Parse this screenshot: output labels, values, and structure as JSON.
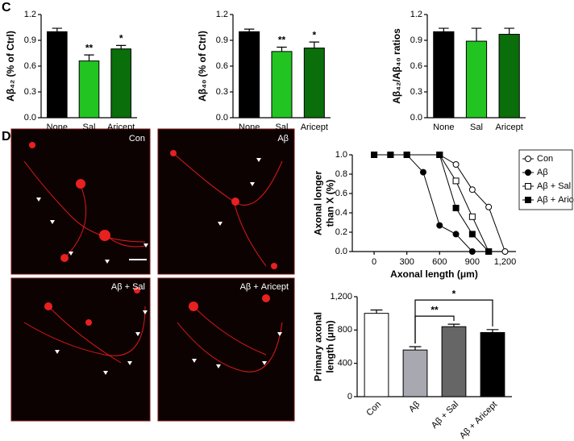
{
  "panel_labels": [
    "C",
    "D"
  ],
  "images": [
    "Con",
    "Aβ",
    "Aβ + Sal",
    "Aβ + Aricept"
  ],
  "chart_data": [
    {
      "type": "bar",
      "ylabel": [
        "Aβ₄₂ (% of Ctrl)"
      ],
      "categories": [
        "None",
        "Sal",
        "Aricept"
      ],
      "values": [
        1.0,
        0.66,
        0.8
      ],
      "errors": [
        0.04,
        0.07,
        0.04
      ],
      "colors": [
        "#000000",
        "#22c422",
        "#0a6e0a"
      ],
      "annotations": [
        null,
        "**",
        "*"
      ],
      "ylim": [
        0,
        1.2
      ],
      "yticks": [
        {
          "value": 0,
          "label": "0.0"
        },
        0.3,
        0.6,
        0.9,
        1.2
      ]
    },
    {
      "type": "bar",
      "ylabel": [
        "Aβ₄₀ (% of Ctrl)"
      ],
      "categories": [
        "None",
        "Sal",
        "Aricept"
      ],
      "values": [
        1.0,
        0.77,
        0.81
      ],
      "errors": [
        0.03,
        0.05,
        0.07
      ],
      "colors": [
        "#000000",
        "#22c422",
        "#0a6e0a"
      ],
      "annotations": [
        null,
        "**",
        "*"
      ],
      "ylim": [
        0,
        1.2
      ],
      "yticks": [
        {
          "value": 0,
          "label": "0.0"
        },
        0.3,
        0.6,
        0.9,
        1.2
      ]
    },
    {
      "type": "bar",
      "ylabel": [
        "Aβ₄₂/Aβ₄₀ ratios"
      ],
      "categories": [
        "None",
        "Sal",
        "Aricept"
      ],
      "values": [
        1.0,
        0.89,
        0.97
      ],
      "errors": [
        0.04,
        0.15,
        0.07
      ],
      "colors": [
        "#000000",
        "#22c422",
        "#0a6e0a"
      ],
      "ylim": [
        0,
        1.2
      ],
      "yticks": [
        {
          "value": 0,
          "label": "0.0"
        },
        0.3,
        0.6,
        0.9,
        1.2
      ]
    },
    {
      "type": "line",
      "ylabel": [
        "Axonal longer",
        "than X (%)"
      ],
      "xlabel": "Axonal length (μm)",
      "xlim": [
        -200,
        1300
      ],
      "ylim": [
        0,
        1
      ],
      "xticks": [
        0,
        300,
        600,
        900,
        {
          "value": 1200,
          "label": "1,200"
        }
      ],
      "yticks": [
        {
          "value": 0,
          "label": "0.0"
        },
        0.2,
        0.4,
        0.6,
        0.8,
        {
          "value": 1,
          "label": "1.0"
        }
      ],
      "legend": "upper right",
      "series": [
        {
          "name": "Con",
          "color": "#000000",
          "marker": "circle",
          "filled": false,
          "x": [
            0,
            150,
            300,
            600,
            750,
            900,
            1050,
            1200
          ],
          "values": [
            1,
            1,
            1,
            1,
            0.9,
            0.64,
            0.46,
            0
          ]
        },
        {
          "name": "Aβ",
          "color": "#000000",
          "marker": "circle",
          "filled": true,
          "x": [
            0,
            150,
            300,
            450,
            600,
            750,
            900
          ],
          "values": [
            1,
            1,
            1,
            0.82,
            0.27,
            0.18,
            0
          ]
        },
        {
          "name": "Aβ + Sal",
          "color": "#000000",
          "marker": "square",
          "filled": false,
          "x": [
            0,
            150,
            300,
            600,
            750,
            900,
            1050
          ],
          "values": [
            1,
            1,
            1,
            1,
            0.73,
            0.36,
            0
          ]
        },
        {
          "name": "Aβ + Aricept",
          "color": "#000000",
          "marker": "square",
          "filled": true,
          "x": [
            0,
            150,
            300,
            600,
            750,
            900,
            1050
          ],
          "values": [
            1,
            1,
            1,
            1,
            0.45,
            0.18,
            0
          ]
        }
      ]
    },
    {
      "type": "bar",
      "ylabel": [
        "Primary axonal",
        "length (μm)"
      ],
      "categories": [
        "Con",
        "Aβ",
        "Aβ + Sal",
        "Aβ + Aricept"
      ],
      "values": [
        1000,
        560,
        840,
        770
      ],
      "errors": [
        40,
        40,
        30,
        35
      ],
      "colors": [
        "#ffffff",
        "#a8a8b0",
        "#666666",
        "#000000"
      ],
      "xtick_rotation": -45,
      "ylim": [
        0,
        1200
      ],
      "yticks": [
        0,
        400,
        800,
        {
          "value": 1200,
          "label": "1,200"
        }
      ],
      "brackets": [
        {
          "from": 1,
          "to": 2,
          "label": "**"
        },
        {
          "from": 1,
          "to": 3,
          "label": "*"
        }
      ]
    }
  ]
}
